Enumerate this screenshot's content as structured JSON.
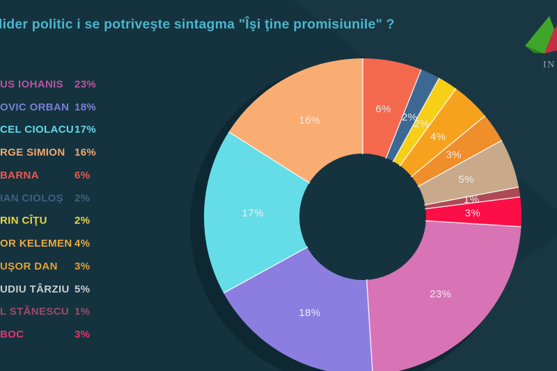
{
  "title": "lider politic i se potriveşte sintagma \"Îşi ţine promisiunile\" ?",
  "title_color": "#4BB5CD",
  "logo": {
    "caption": "IN",
    "green": "#3FA62B",
    "dark_green": "#2F831D",
    "red": "#C92B43"
  },
  "chart_data": {
    "type": "donut",
    "title": "lider politic i se potriveşte sintagma \"Îşi ţine promisiunile\" ?",
    "unit": "%",
    "legend_position": "left",
    "slice_label_format": "percent",
    "start_angle_deg": 0,
    "direction": "clockwise",
    "series": [
      {
        "name": "US IOHANIS",
        "value": 23,
        "slice_color": "#D873B6",
        "text_color": "#BA539F"
      },
      {
        "name": "OVIC ORBAN",
        "value": 18,
        "slice_color": "#8C7EE0",
        "text_color": "#7B7ED1"
      },
      {
        "name": "CEL CIOLACU",
        "value": 17,
        "slice_color": "#65DDE8",
        "text_color": "#65D8E3"
      },
      {
        "name": "RGE SIMION",
        "value": 16,
        "slice_color": "#FAAD73",
        "text_color": "#F2A871"
      },
      {
        "name": "BARNA",
        "value": 6,
        "slice_color": "#F4684E",
        "text_color": "#EE584D"
      },
      {
        "name": "IAN CIOLOŞ",
        "value": 2,
        "slice_color": "#3D6892",
        "text_color": "#3F607F"
      },
      {
        "name": "RIN CÎŢU",
        "value": 2,
        "slice_color": "#F6CF16",
        "text_color": "#E9D446"
      },
      {
        "name": "OR KELEMEN",
        "value": 4,
        "slice_color": "#F7A21E",
        "text_color": "#ECA93E"
      },
      {
        "name": "UŞOR DAN",
        "value": 3,
        "slice_color": "#EE8F2B",
        "text_color": "#E2A237"
      },
      {
        "name": "UDIU TÂRZIU",
        "value": 5,
        "slice_color": "#C8A98B",
        "text_color": "#C9CED3"
      },
      {
        "name": "L STĂNESCU",
        "value": 1,
        "slice_color": "#AE4A55",
        "text_color": "#9D4B68"
      },
      {
        "name": "BOC",
        "value": 3,
        "slice_color": "#FC0E47",
        "text_color": "#E43270"
      }
    ],
    "draw_order": [
      4,
      5,
      6,
      7,
      8,
      9,
      10,
      11,
      0,
      1,
      2,
      3
    ]
  }
}
